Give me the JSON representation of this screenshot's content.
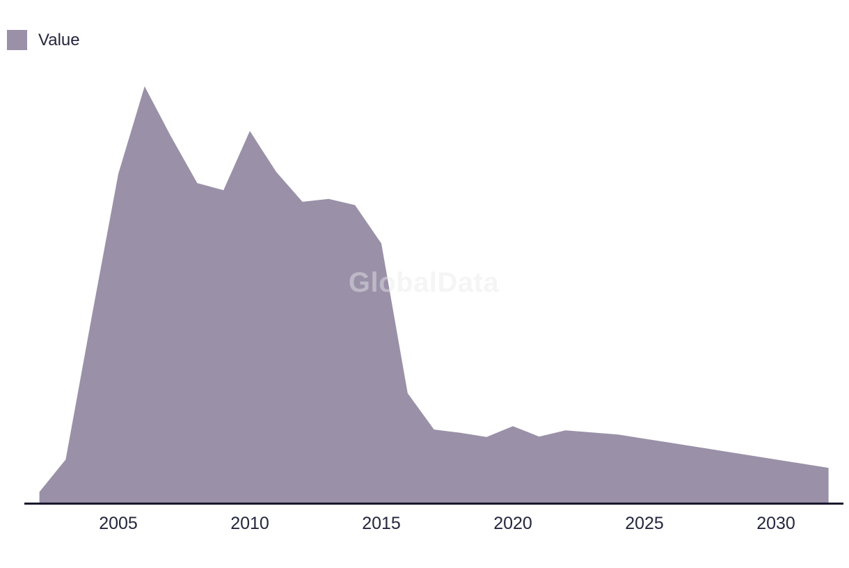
{
  "page": {
    "background": "#ffffff"
  },
  "legend": {
    "label": "Value",
    "swatch_color": "#9a91a8",
    "position": "top-left"
  },
  "watermark": {
    "text": "GlobalData"
  },
  "chart_data": {
    "type": "area",
    "title": "",
    "xlabel": "",
    "ylabel": "",
    "x": [
      2002,
      2003,
      2004,
      2005,
      2006,
      2007,
      2008,
      2009,
      2010,
      2011,
      2012,
      2013,
      2014,
      2015,
      2016,
      2017,
      2018,
      2019,
      2020,
      2021,
      2022,
      2023,
      2024,
      2025,
      2026,
      2027,
      2028,
      2029,
      2030,
      2031,
      2032
    ],
    "series": [
      {
        "name": "Value",
        "values": [
          2.7,
          10.5,
          45.1,
          79.0,
          100.0,
          88.0,
          76.8,
          75.1,
          89.3,
          79.5,
          72.3,
          73.0,
          71.5,
          62.3,
          26.4,
          17.7,
          16.9,
          15.9,
          18.5,
          16.0,
          17.5,
          17.0,
          16.5,
          15.5,
          14.5,
          13.5,
          12.5,
          11.5,
          10.5,
          9.5,
          8.5
        ]
      }
    ],
    "values_unit": "relative index (peak in 2006 = 100; no y-axis labels shown in chart)",
    "x_tick_labels": [
      "2005",
      "2010",
      "2015",
      "2020",
      "2025",
      "2030"
    ],
    "x_tick_years": [
      2005,
      2010,
      2015,
      2020,
      2025,
      2030
    ],
    "ylim": [
      0,
      105
    ],
    "grid": false,
    "legend_position": "top-left",
    "colors": {
      "area_fill": "#9a91a8",
      "axis_line": "#18182d",
      "tick_label": "#23263c",
      "watermark": "rgba(232,232,236,0.45)",
      "background": "#ffffff"
    }
  }
}
